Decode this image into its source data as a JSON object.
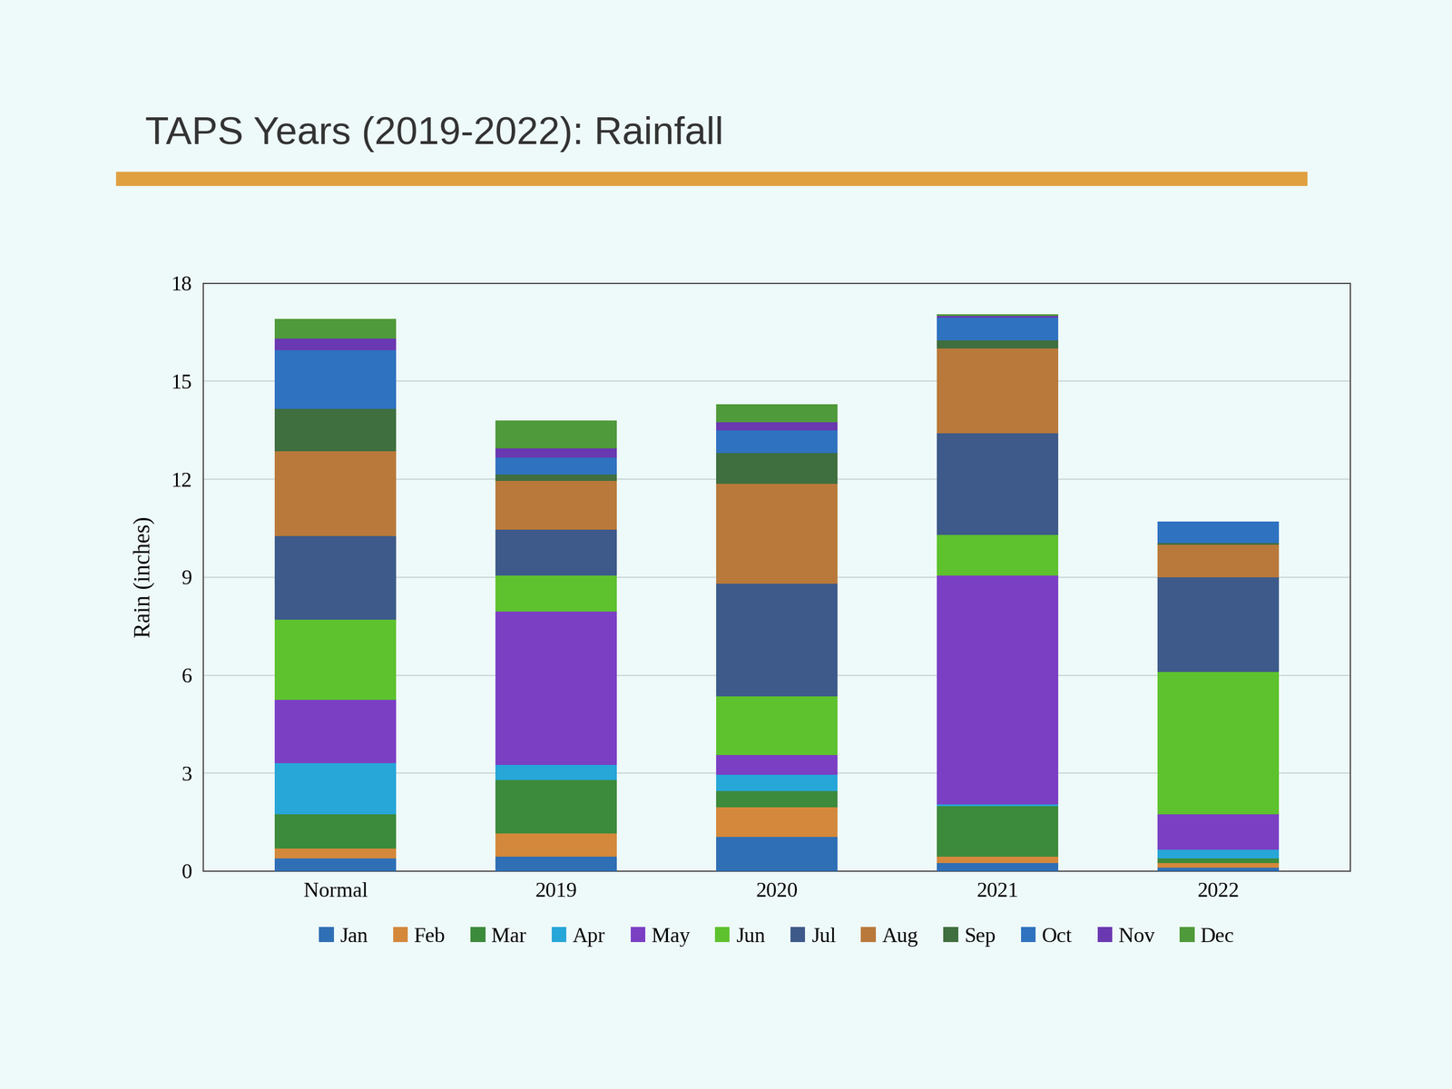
{
  "chart_data": {
    "type": "bar",
    "stacked": true,
    "title": "TAPS Years (2019-2022): Rainfall",
    "y_label": "Rain (inches)",
    "categories": [
      "Normal",
      "2019",
      "2020",
      "2021",
      "2022"
    ],
    "ylim": [
      0,
      18
    ],
    "yticks": [
      0,
      3,
      6,
      9,
      12,
      15,
      18
    ],
    "grid": true,
    "legend": "lower center",
    "series": [
      {
        "name": "Jan",
        "color": "#2f6fb5",
        "values": [
          0.4,
          0.45,
          1.05,
          0.25,
          0.1
        ]
      },
      {
        "name": "Feb",
        "color": "#d4883b",
        "values": [
          0.3,
          0.7,
          0.9,
          0.2,
          0.15
        ]
      },
      {
        "name": "Mar",
        "color": "#3c8a3c",
        "values": [
          1.05,
          1.65,
          0.5,
          1.55,
          0.15
        ]
      },
      {
        "name": "Apr",
        "color": "#27a6d8",
        "values": [
          1.55,
          0.45,
          0.5,
          0.05,
          0.25
        ]
      },
      {
        "name": "May",
        "color": "#7b3fc4",
        "values": [
          1.95,
          4.7,
          0.6,
          7.0,
          1.1
        ]
      },
      {
        "name": "Jun",
        "color": "#5dc22e",
        "values": [
          2.45,
          1.1,
          1.8,
          1.25,
          4.35
        ]
      },
      {
        "name": "Jul",
        "color": "#3d5a8a",
        "values": [
          2.55,
          1.4,
          3.45,
          3.1,
          2.9
        ]
      },
      {
        "name": "Aug",
        "color": "#b9793a",
        "values": [
          2.6,
          1.5,
          3.05,
          2.6,
          1.0
        ]
      },
      {
        "name": "Sep",
        "color": "#3f6e3f",
        "values": [
          1.3,
          0.2,
          0.95,
          0.25,
          0.05
        ]
      },
      {
        "name": "Oct",
        "color": "#2f72c0",
        "values": [
          1.8,
          0.5,
          0.7,
          0.7,
          0.65
        ]
      },
      {
        "name": "Nov",
        "color": "#6a38b0",
        "values": [
          0.35,
          0.3,
          0.25,
          0.05,
          0.0
        ]
      },
      {
        "name": "Dec",
        "color": "#4f9a3a",
        "values": [
          0.6,
          0.85,
          0.55,
          0.05,
          0.0
        ]
      }
    ]
  }
}
